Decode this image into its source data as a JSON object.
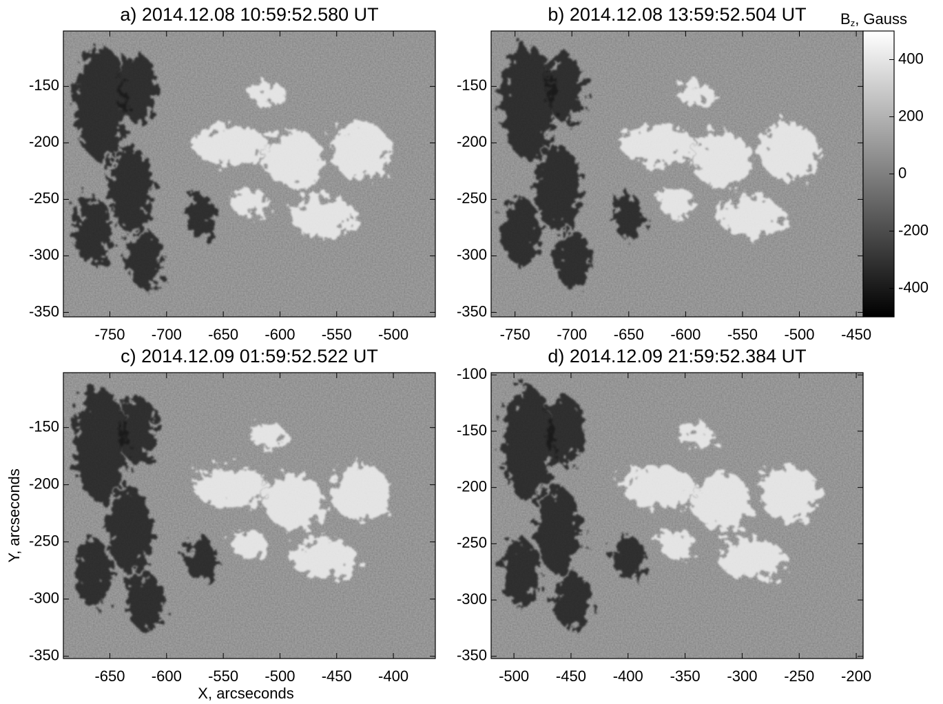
{
  "chart_data": [
    {
      "type": "image",
      "title": "a) 2014.12.08 10:59:52.580 UT",
      "xlim": [
        -791,
        -463
      ],
      "xticks": [
        -750,
        -700,
        -650,
        -600,
        -550,
        -500
      ],
      "ylim": [
        -354,
        -101
      ],
      "yticks": [
        -150,
        -200,
        -250,
        -300,
        -350
      ]
    },
    {
      "type": "image",
      "title": "b) 2014.12.08 13:59:52.504 UT",
      "xlim": [
        -771,
        -444
      ],
      "xticks": [
        -750,
        -700,
        -650,
        -600,
        -550,
        -500,
        -450
      ],
      "ylim": [
        -354,
        -101
      ],
      "yticks": [
        -150,
        -200,
        -250,
        -300,
        -350
      ],
      "colorbar": {
        "label_parts": [
          "B",
          "z",
          ", Gauss"
        ],
        "lim": [
          -500,
          500
        ],
        "ticks": [
          400,
          200,
          0,
          -200,
          -400
        ]
      }
    },
    {
      "type": "image",
      "title": "c) 2014.12.09 01:59:52.522 UT",
      "xlim": [
        -691,
        -363
      ],
      "xticks": [
        -650,
        -600,
        -550,
        -500,
        -450,
        -400
      ],
      "ylim": [
        -352,
        -102
      ],
      "yticks": [
        -150,
        -200,
        -250,
        -300,
        -350
      ],
      "xlabel": "X, arcseconds",
      "ylabel": "Y, arcseconds"
    },
    {
      "type": "image",
      "title": "d) 2014.12.09 21:59:52.384 UT",
      "xlim": [
        -520,
        -194
      ],
      "xticks": [
        -500,
        -450,
        -400,
        -350,
        -300,
        -250,
        -200
      ],
      "ylim": [
        -352,
        -98
      ],
      "yticks": [
        -100,
        -150,
        -200,
        -250,
        -300,
        -350
      ]
    }
  ]
}
